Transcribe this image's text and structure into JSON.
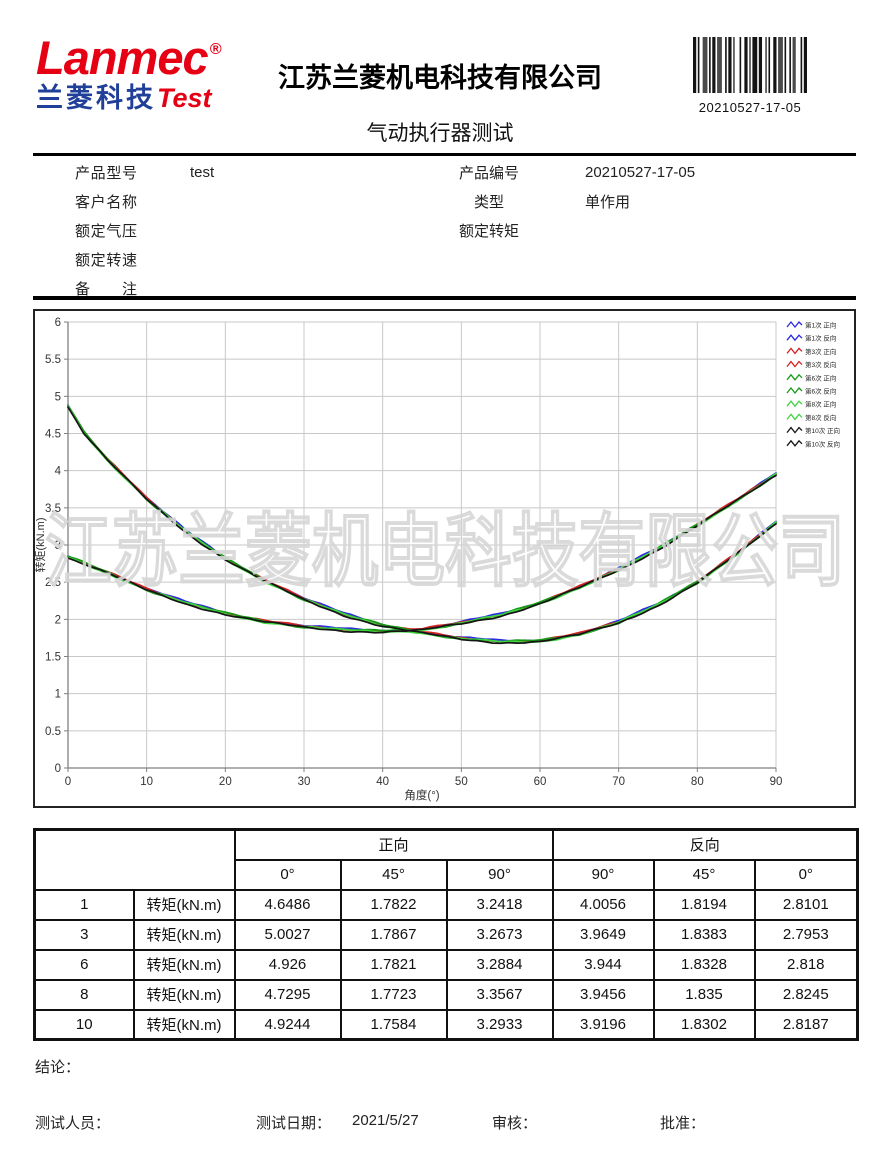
{
  "header": {
    "logo_main": "Lanmec",
    "logo_reg": "®",
    "logo_cn": "兰菱科技",
    "logo_en": "Test",
    "company": "江苏兰菱机电科技有限公司",
    "doc_title": "气动执行器测试",
    "barcode_value": "20210527-17-05"
  },
  "info": {
    "left": [
      {
        "label": "产品型号",
        "value": "test"
      },
      {
        "label": "客户名称",
        "value": ""
      },
      {
        "label": "额定气压",
        "value": ""
      },
      {
        "label": "额定转速",
        "value": ""
      },
      {
        "label": "备 注",
        "value": ""
      }
    ],
    "right": [
      {
        "label": "产品编号",
        "value": "20210527-17-05"
      },
      {
        "label": "类型",
        "value": "单作用"
      },
      {
        "label": "额定转矩",
        "value": ""
      }
    ]
  },
  "chart_data": {
    "type": "line",
    "xlabel": "角度(°)",
    "ylabel": "转矩(kN.m)",
    "xlim": [
      0,
      90
    ],
    "ylim": [
      0,
      6
    ],
    "xticks": [
      0,
      10,
      20,
      30,
      40,
      50,
      60,
      70,
      80,
      90
    ],
    "yticks": [
      0,
      0.5,
      1,
      1.5,
      2,
      2.5,
      3,
      3.5,
      4,
      4.5,
      5,
      5.5,
      6
    ],
    "grid": true,
    "legend_position": "top-right",
    "watermark": "江苏兰菱机电科技有限公司",
    "x": [
      0,
      2,
      5,
      10,
      15,
      20,
      25,
      30,
      35,
      40,
      45,
      50,
      55,
      60,
      65,
      70,
      75,
      80,
      85,
      90
    ],
    "curves": {
      "forward": [
        4.87,
        4.52,
        4.15,
        3.62,
        3.18,
        2.82,
        2.52,
        2.27,
        2.07,
        1.92,
        1.82,
        1.74,
        1.7,
        1.71,
        1.8,
        1.96,
        2.2,
        2.5,
        2.88,
        3.3
      ],
      "reverse": [
        2.84,
        2.76,
        2.63,
        2.4,
        2.22,
        2.08,
        1.97,
        1.9,
        1.86,
        1.84,
        1.86,
        1.95,
        2.06,
        2.22,
        2.43,
        2.67,
        2.95,
        3.27,
        3.6,
        3.95
      ]
    },
    "series": [
      {
        "name": "第1次 正向",
        "color": "#2a2ae0",
        "curve": "forward"
      },
      {
        "name": "第1次 反向",
        "color": "#2a2ae0",
        "curve": "reverse"
      },
      {
        "name": "第3次 正向",
        "color": "#d42222",
        "curve": "forward"
      },
      {
        "name": "第3次 反向",
        "color": "#d42222",
        "curve": "reverse"
      },
      {
        "name": "第6次 正向",
        "color": "#169a16",
        "curve": "forward"
      },
      {
        "name": "第6次 反向",
        "color": "#169a16",
        "curve": "reverse"
      },
      {
        "name": "第8次 正向",
        "color": "#3fd43f",
        "curve": "forward"
      },
      {
        "name": "第8次 反向",
        "color": "#3fd43f",
        "curve": "reverse"
      },
      {
        "name": "第10次 正向",
        "color": "#151515",
        "curve": "forward"
      },
      {
        "name": "第10次 反向",
        "color": "#151515",
        "curve": "reverse"
      }
    ]
  },
  "table": {
    "group_headers": [
      "正向",
      "反向"
    ],
    "sub_headers": [
      "0°",
      "45°",
      "90°",
      "90°",
      "45°",
      "0°"
    ],
    "row_label": "转矩(kN.m)",
    "rows": [
      {
        "no": "1",
        "values": [
          "4.6486",
          "1.7822",
          "3.2418",
          "4.0056",
          "1.8194",
          "2.8101"
        ]
      },
      {
        "no": "3",
        "values": [
          "5.0027",
          "1.7867",
          "3.2673",
          "3.9649",
          "1.8383",
          "2.7953"
        ]
      },
      {
        "no": "6",
        "values": [
          "4.926",
          "1.7821",
          "3.2884",
          "3.944",
          "1.8328",
          "2.818"
        ]
      },
      {
        "no": "8",
        "values": [
          "4.7295",
          "1.7723",
          "3.3567",
          "3.9456",
          "1.835",
          "2.8245"
        ]
      },
      {
        "no": "10",
        "values": [
          "4.9244",
          "1.7584",
          "3.2933",
          "3.9196",
          "1.8302",
          "2.8187"
        ]
      }
    ]
  },
  "footer": {
    "conclusion_label": "结论：",
    "tester_label": "测试人员：",
    "date_label": "测试日期：",
    "date_value": "2021/5/27",
    "review_label": "审核：",
    "approve_label": "批准："
  },
  "colors": {
    "brand_red": "#e60014",
    "brand_blue": "#1f3f99",
    "grid": "#c8c8c8",
    "axis": "#7f7f7f",
    "watermark": "#d6d6d6"
  }
}
